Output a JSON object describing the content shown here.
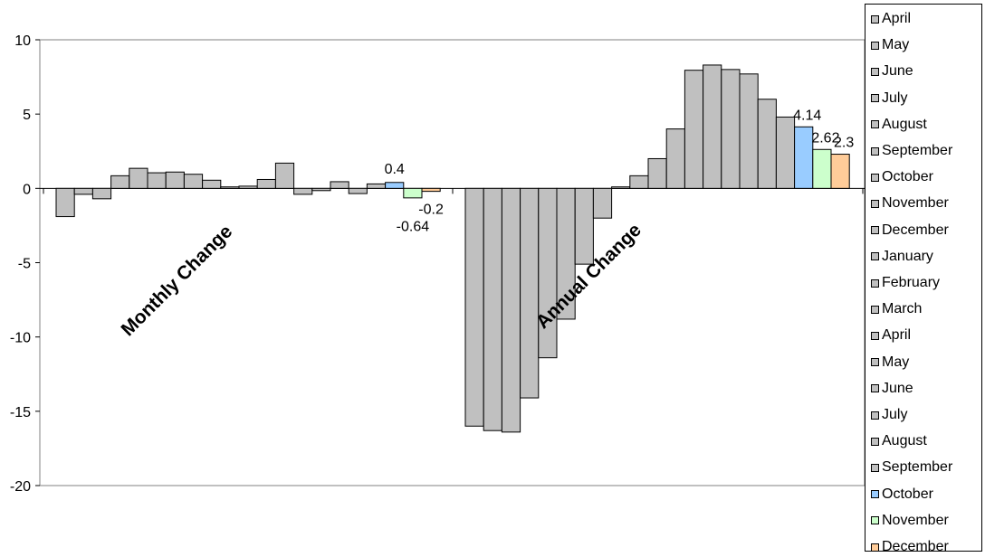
{
  "chart_data": {
    "type": "bar",
    "ylim": [
      -20,
      10
    ],
    "yticks": [
      10,
      5,
      0,
      -5,
      -10,
      -15,
      -20
    ],
    "grid": false,
    "legend_position": "right",
    "annotations": [
      "Monthly Change",
      "Annual Change"
    ],
    "colors": {
      "default": "#c0c0c0",
      "October": "#99ccff",
      "November": "#ccffcc",
      "December": "#ffcc99"
    },
    "groups": [
      {
        "name": "Monthly Change",
        "values": [
          -1.9,
          -0.4,
          -0.7,
          0.85,
          1.35,
          1.05,
          1.1,
          0.95,
          0.55,
          0.1,
          0.15,
          0.6,
          1.7,
          -0.4,
          -0.15,
          0.45,
          -0.35,
          0.3,
          0.4,
          -0.64,
          -0.2
        ],
        "labels": {
          "18": "0.4",
          "19": "-0.64",
          "20": "-0.2"
        }
      },
      {
        "name": "Annual Change",
        "values": [
          -16.0,
          -16.3,
          -16.4,
          -14.1,
          -11.4,
          -8.8,
          -5.1,
          -2.0,
          0.1,
          0.85,
          2.0,
          4.0,
          7.95,
          8.3,
          8.0,
          7.7,
          6.0,
          4.8,
          4.14,
          2.62,
          2.3
        ],
        "labels": {
          "18": "4.14",
          "19": "2.62",
          "20": "2.3"
        }
      }
    ],
    "legend": [
      "April",
      "May",
      "June",
      "July",
      "August",
      "September",
      "October",
      "November",
      "December",
      "January",
      "February",
      "March",
      "April",
      "May",
      "June",
      "July",
      "August",
      "September",
      "October",
      "November",
      "December"
    ]
  }
}
